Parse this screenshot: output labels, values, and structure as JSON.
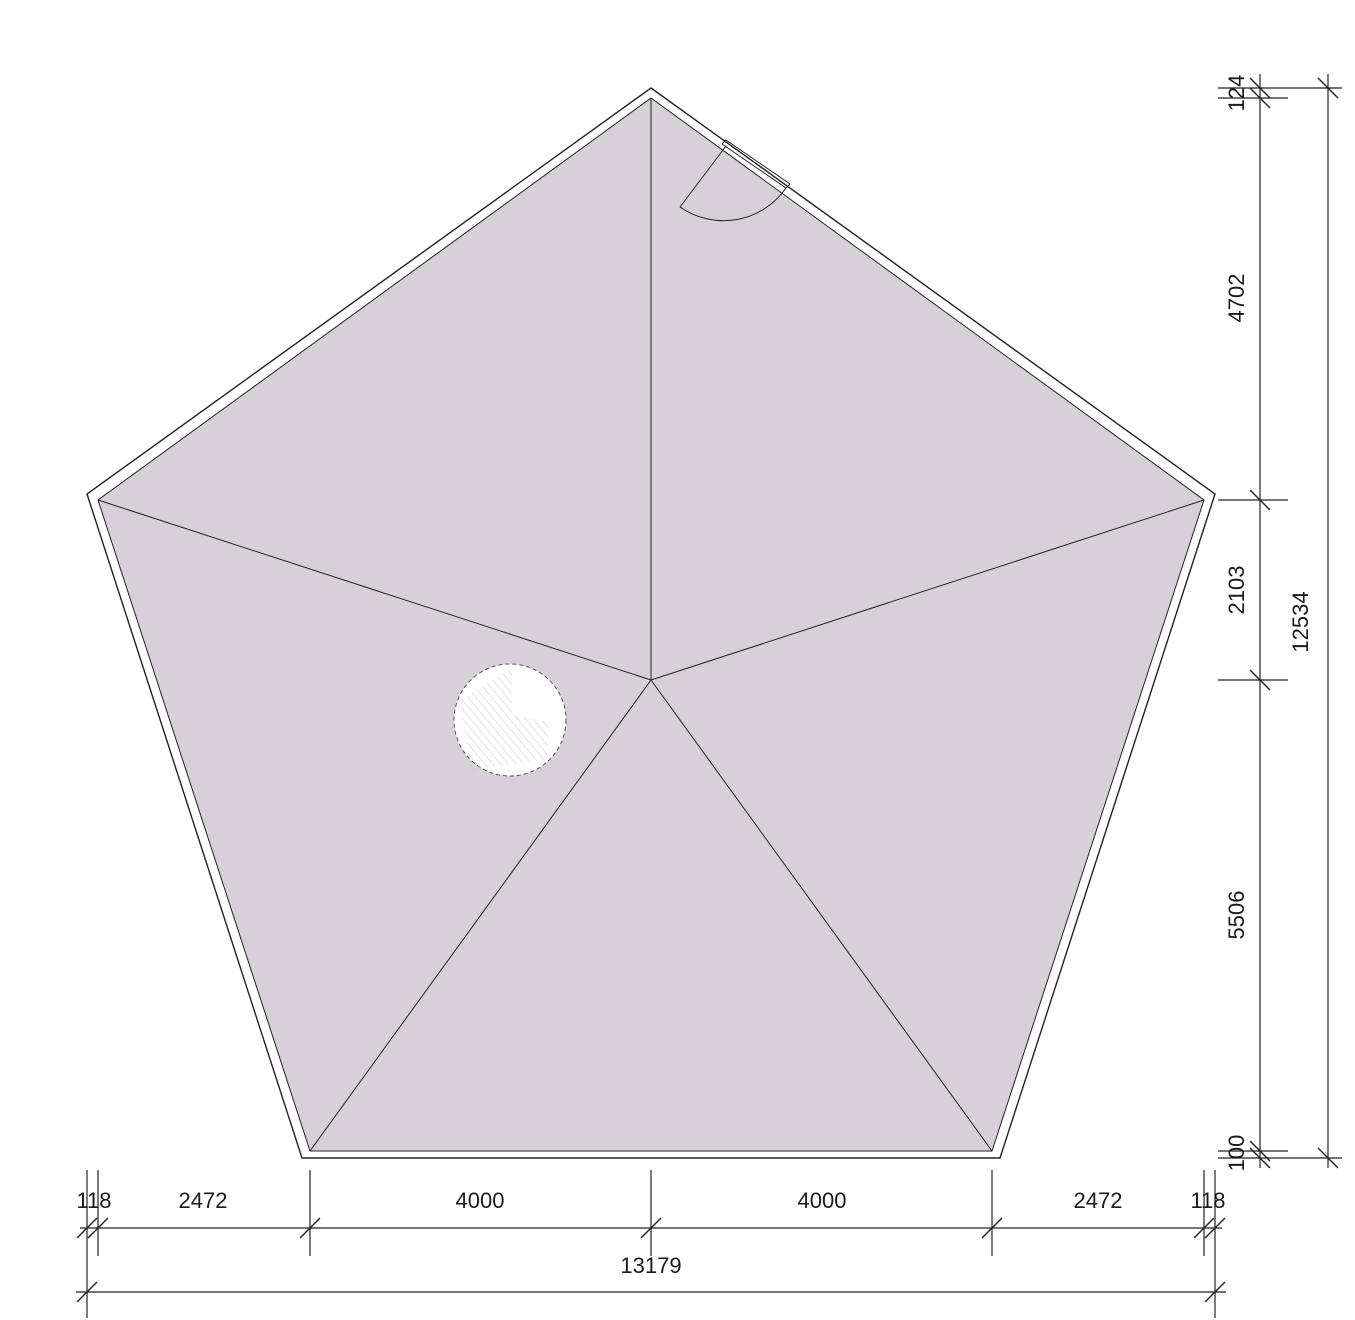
{
  "plan": {
    "fill_color": "#d8d0d8",
    "line_color": "#222222",
    "background": "#ffffff"
  },
  "dimensions": {
    "bottom": {
      "segments": [
        "118",
        "2472",
        "4000",
        "4000",
        "2472",
        "118"
      ],
      "overall": "13179"
    },
    "right": {
      "segments": [
        "124",
        "4702",
        "2103",
        "5506",
        "100"
      ],
      "overall": "12534"
    }
  }
}
